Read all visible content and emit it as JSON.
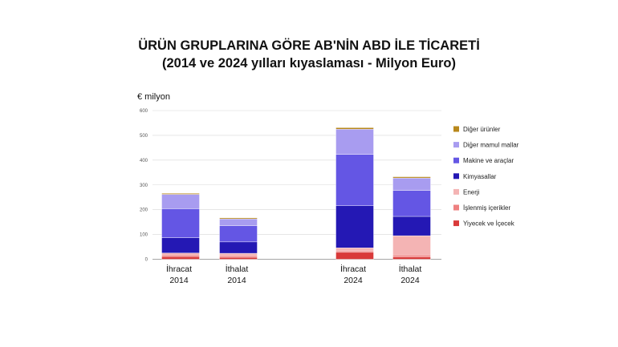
{
  "title_line1": "ÜRÜN GRUPLARINA GÖRE AB'NİN ABD İLE TİCARETİ",
  "title_line2": "(2014 ve 2024 yılları kıyaslaması - Milyon Euro)",
  "unit_label": "€ milyon",
  "chart_data": {
    "type": "bar",
    "stacked": true,
    "categories": [
      {
        "line1": "İhracat",
        "line2": "2014"
      },
      {
        "line1": "İthalat",
        "line2": "2014"
      },
      {
        "line1": "İhracat",
        "line2": "2024"
      },
      {
        "line1": "İthalat",
        "line2": "2024"
      }
    ],
    "ylim": [
      0,
      600
    ],
    "yticks": [
      0,
      100,
      200,
      300,
      400,
      500,
      600
    ],
    "grid": true,
    "legend_position": "right",
    "series": [
      {
        "name": "Yiyecek ve İçecek",
        "color": "#d93a3a",
        "values": [
          11,
          8,
          28,
          9
        ]
      },
      {
        "name": "İşlenmiş içerikler",
        "color": "#ee8080",
        "values": [
          6,
          6,
          6,
          8
        ]
      },
      {
        "name": "Enerji",
        "color": "#f4b4b4",
        "values": [
          8,
          10,
          12,
          78
        ]
      },
      {
        "name": "Kimyasallar",
        "color": "#2418b4",
        "values": [
          62,
          46,
          170,
          78
        ]
      },
      {
        "name": "Makine ve araçlar",
        "color": "#6456e4",
        "values": [
          117,
          65,
          207,
          105
        ]
      },
      {
        "name": "Diğer mamul mallar",
        "color": "#a89cf0",
        "values": [
          58,
          28,
          102,
          50
        ]
      },
      {
        "name": "Diğer ürünler",
        "color": "#b8881c",
        "values": [
          4,
          4,
          6,
          5
        ]
      }
    ]
  }
}
